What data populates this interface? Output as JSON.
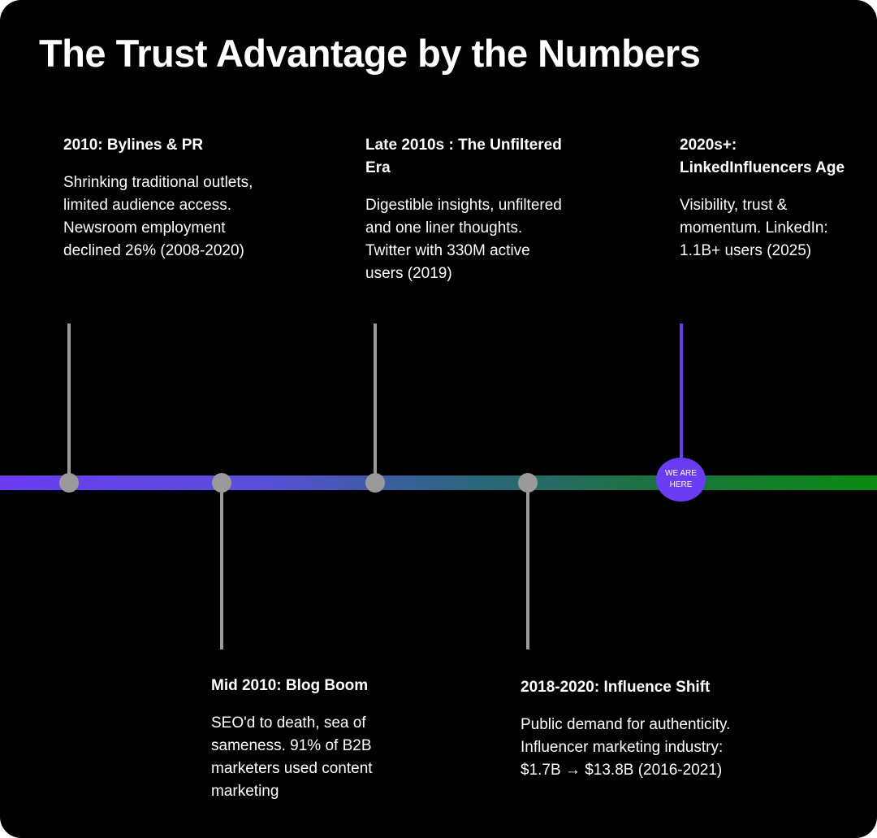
{
  "title": "The Trust Advantage by the Numbers",
  "colors": {
    "background": "#000000",
    "text": "#ffffff",
    "stem": "#9a9a9a",
    "accent_purple": "#6a3cf2",
    "accent_green": "#0f8a12"
  },
  "events": [
    {
      "heading": "2010: Bylines & PR",
      "body": "Shrinking traditional outlets, limited audience access. Newsroom employment declined 26% (2008-2020)"
    },
    {
      "heading": "Mid 2010: Blog Boom",
      "body": "SEO'd to death, sea of sameness. 91% of B2B marketers used content marketing"
    },
    {
      "heading": "Late 2010s : The Unfiltered Era",
      "body": "Digestible insights, unfiltered and one liner thoughts. Twitter with 330M active users (2019)"
    },
    {
      "heading": "2018-2020: Influence Shift",
      "body": "Public demand for authenticity. Influencer marketing industry: $1.7B → $13.8B (2016-2021)"
    },
    {
      "heading": "2020s+: LinkedInfluencers Age",
      "body": "Visibility, trust & momentum. LinkedIn: 1.1B+ users (2025)"
    }
  ],
  "here_marker": "WE ARE HERE"
}
